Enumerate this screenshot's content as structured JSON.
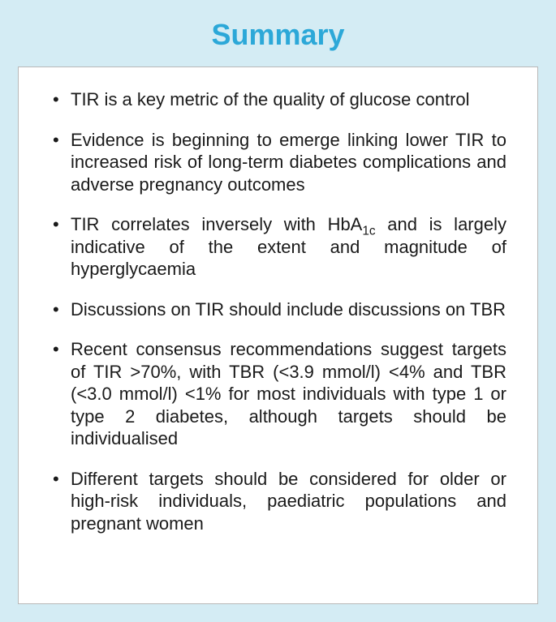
{
  "title": "Summary",
  "background_color": "#d4ecf4",
  "box_background": "#ffffff",
  "box_border_color": "#b8b8b8",
  "title_color": "#2ca8d8",
  "title_fontsize": 36,
  "text_color": "#1a1a1a",
  "body_fontsize": 22,
  "bullets": [
    {
      "text": "TIR is a key metric of the quality of glucose control",
      "has_subscript": false
    },
    {
      "text": "Evidence is beginning to emerge linking lower TIR to increased risk of long-term diabetes complications and adverse pregnancy outcomes",
      "has_subscript": false
    },
    {
      "text_before": "TIR correlates inversely with HbA",
      "subscript": "1c",
      "text_after": " and is largely indicative of the extent and magnitude of hyperglycaemia",
      "has_subscript": true
    },
    {
      "text": "Discussions on TIR should include discussions on TBR",
      "has_subscript": false
    },
    {
      "text": "Recent consensus recommendations suggest targets of TIR >70%, with TBR (<3.9 mmol/l) <4% and TBR (<3.0 mmol/l) <1% for most individuals with type 1 or type 2 diabetes, although targets should be individualised",
      "has_subscript": false
    },
    {
      "text": "Different targets should be considered for older or high-risk individuals, paediatric populations and pregnant women",
      "has_subscript": false
    }
  ]
}
